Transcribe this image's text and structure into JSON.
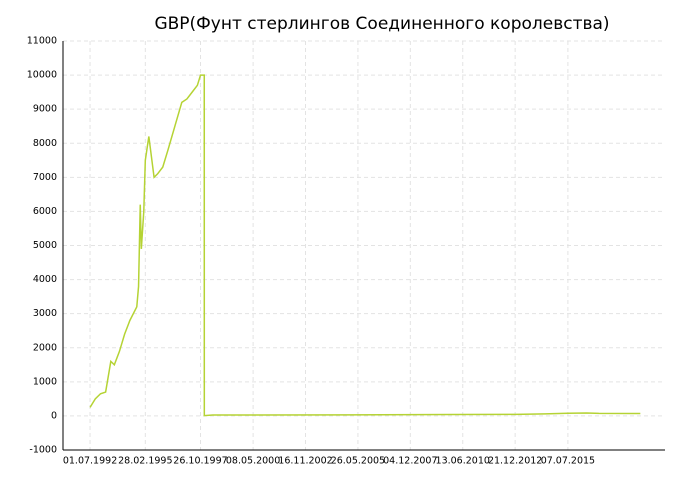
{
  "chart_data": {
    "type": "line",
    "title": "GBP(Фунт стерлингов Соединенного королевства)",
    "x": [
      "01.07.1992",
      "01.10.1992",
      "01.01.1993",
      "01.04.1993",
      "01.07.1993",
      "01.09.1993",
      "01.12.1993",
      "01.03.1994",
      "01.06.1994",
      "01.10.1994",
      "01.11.1994",
      "01.12.1994",
      "20.12.1994",
      "01.02.1995",
      "28.02.1995",
      "01.05.1995",
      "01.08.1995",
      "01.10.1995",
      "01.01.1996",
      "01.04.1996",
      "01.08.1996",
      "01.12.1996",
      "01.03.1997",
      "01.06.1997",
      "01.09.1997",
      "26.10.1997",
      "31.12.1997",
      "01.01.1998",
      "01.06.1998",
      "01.01.2005",
      "01.01.2010",
      "01.01.2013",
      "01.06.2014",
      "07.07.2015",
      "01.06.2016",
      "01.01.2017",
      "01.01.2019"
    ],
    "series": [
      {
        "name": "GBP",
        "color": "#b5d334",
        "values": [
          250,
          500,
          650,
          700,
          1600,
          1500,
          1900,
          2400,
          2800,
          3200,
          3800,
          6200,
          4900,
          6000,
          7500,
          8200,
          7000,
          7100,
          7300,
          7800,
          8500,
          9200,
          9300,
          9500,
          9700,
          10000,
          10000,
          10,
          25,
          30,
          40,
          45,
          60,
          80,
          85,
          75,
          70
        ]
      }
    ],
    "xlim": [
      "13.03.1991",
      "10.03.2020"
    ],
    "xticks": [
      "01.07.1992",
      "28.02.1995",
      "26.10.1997",
      "08.05.2000",
      "16.11.2002",
      "26.05.2005",
      "04.12.2007",
      "13.06.2010",
      "21.12.2012",
      "07.07.2015"
    ],
    "ylim": [
      -1000,
      11000
    ],
    "yticks": [
      -1000,
      0,
      1000,
      2000,
      3000,
      4000,
      5000,
      6000,
      7000,
      8000,
      9000,
      10000,
      11000
    ],
    "grid": true
  }
}
